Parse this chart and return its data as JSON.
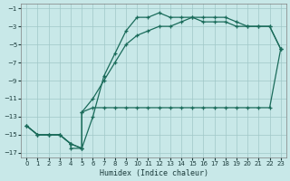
{
  "xlabel": "Humidex (Indice chaleur)",
  "bg_color": "#c8e8e8",
  "grid_color": "#a0c8c8",
  "line_color": "#1a6b5a",
  "xlim": [
    -0.5,
    23.5
  ],
  "ylim": [
    -17.5,
    -0.5
  ],
  "xticks": [
    0,
    1,
    2,
    3,
    4,
    5,
    6,
    7,
    8,
    9,
    10,
    11,
    12,
    13,
    14,
    15,
    16,
    17,
    18,
    19,
    20,
    21,
    22,
    23
  ],
  "yticks": [
    -1,
    -3,
    -5,
    -7,
    -9,
    -11,
    -13,
    -15,
    -17
  ],
  "curve1_x": [
    0,
    1,
    2,
    3,
    4,
    5,
    5,
    6,
    7,
    8,
    9,
    10,
    11,
    12,
    13,
    14,
    15,
    16,
    17,
    18,
    19,
    20,
    21,
    22,
    23
  ],
  "curve1_y": [
    -14,
    -15,
    -15,
    -15,
    -16,
    -16.5,
    -12.5,
    -12,
    -12,
    -12,
    -12,
    -12,
    -12,
    -12,
    -12,
    -12,
    -12,
    -12,
    -12,
    -12,
    -12,
    -12,
    -12,
    -12,
    -5.5
  ],
  "curve2_x": [
    0,
    1,
    2,
    3,
    4,
    5,
    5,
    6,
    7,
    8,
    9,
    10,
    11,
    12,
    13,
    14,
    15,
    16,
    17,
    18,
    19,
    20,
    21,
    22,
    23
  ],
  "curve2_y": [
    -14,
    -15,
    -15,
    -15,
    -16,
    -16.5,
    -12.5,
    -11,
    -9,
    -7,
    -5,
    -4,
    -3.5,
    -3,
    -3,
    -2.5,
    -2,
    -2,
    -2,
    -2,
    -2.5,
    -3,
    -3,
    -3,
    -5.5
  ],
  "curve3_x": [
    0,
    1,
    2,
    3,
    4,
    4,
    5,
    6,
    7,
    8,
    9,
    10,
    11,
    12,
    13,
    14,
    15,
    16,
    17,
    18,
    19,
    20,
    21,
    22,
    23
  ],
  "curve3_y": [
    -14,
    -15,
    -15,
    -15,
    -16,
    -16.5,
    -16.5,
    -13,
    -8.5,
    -6,
    -3.5,
    -2,
    -2,
    -1.5,
    -2,
    -2,
    -2,
    -2.5,
    -2.5,
    -2.5,
    -3,
    -3,
    -3,
    -3,
    -5.5
  ]
}
